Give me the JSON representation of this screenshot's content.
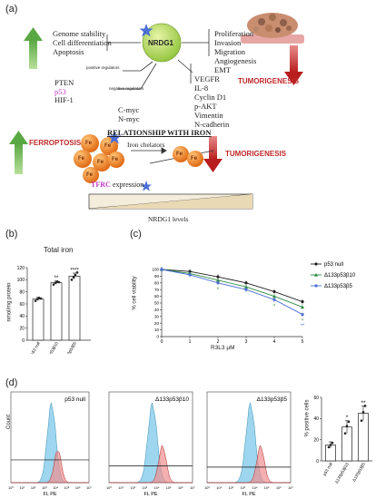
{
  "panel_a": {
    "label": "(a)",
    "center": "NRDG1",
    "left_up": [
      "Genome stability",
      "Cell differentiation",
      "Apoptosis"
    ],
    "right_down": [
      "Proliferation",
      "Invasion",
      "Migration",
      "Angiogenesis",
      "EMT"
    ],
    "tumorigenesis": "TUMORIGENESIS",
    "positive_regulators_label": "positive regulators",
    "negative_regulators_label": "negative regulators",
    "pos_regs": [
      "PTEN",
      "p53",
      "HIF-1"
    ],
    "neg_regs": [
      "C-myc",
      "N-myc"
    ],
    "downstream": [
      "VEGFR",
      "IL-8",
      "Cyclin D1",
      "p-AKT",
      "Vimentin",
      "N-cadherin"
    ],
    "relationship": "RELATIONSHIP WITH IRON",
    "ferroptosis": "FERROPTOSIS",
    "iron_chelators": "Iron chelators",
    "tumorigenesis2": "TUMORIGENESIS",
    "tfrc_word": "TFRC",
    "expression_word": "expression",
    "nrdg1_levels": "NRDG1 levels",
    "fe": "Fe"
  },
  "panel_b": {
    "label": "(b)",
    "title": "Total iron",
    "ylabel": "nmol/mg protein",
    "yticks": [
      "0",
      "20",
      "40",
      "60",
      "80",
      "100",
      "120"
    ],
    "categories": [
      "p53 null",
      "Δ133p53β10",
      "Δ133p53β5"
    ],
    "sig": [
      "",
      "**",
      "****"
    ]
  },
  "panel_c": {
    "label": "(c)",
    "xlabel": "R3L3 μM",
    "ylabel": "% cell viability",
    "yticks": [
      "0",
      "10",
      "20",
      "30",
      "40",
      "50",
      "60",
      "70",
      "80",
      "90",
      "100"
    ],
    "xticks": [
      "0",
      "1",
      "2",
      "3",
      "4",
      "5"
    ],
    "legend": [
      "p53 null",
      "Δ133p53β10",
      "Δ133p53β5"
    ]
  },
  "panel_d": {
    "label": "(d)",
    "ylabel": "Count",
    "xlabel": "FL PE",
    "titles": [
      "p53 null",
      "Δ133p53β10",
      "Δ133p53β5"
    ],
    "xticks": [
      "10⁰",
      "10¹",
      "10²",
      "10³",
      "10⁴",
      "10⁵",
      "10⁶",
      "10⁷"
    ],
    "bar_ylabel": "% positive cells",
    "bar_yticks": [
      "0",
      "20",
      "40",
      "60"
    ],
    "bar_categories": [
      "p53 null",
      "Δ133p53β10",
      "Δ133p53β5"
    ],
    "bar_sig": [
      "",
      "*",
      "**"
    ]
  },
  "colors": {
    "green": "#7dbf5e",
    "red": "#c0282a",
    "magenta": "#c23cc8",
    "orange": "#e8792a",
    "blue": "#4b6fd6"
  },
  "chart_data": [
    {
      "type": "bar",
      "title": "Total iron",
      "ylabel": "nmol/mg protein",
      "categories": [
        "p53 null",
        "Δ133p53β10",
        "Δ133p53β5"
      ],
      "values": [
        68,
        95,
        106
      ],
      "errors": [
        3,
        3,
        5
      ],
      "points": [
        [
          65,
          68,
          70,
          69
        ],
        [
          92,
          95,
          97,
          96
        ],
        [
          100,
          104,
          108,
          112
        ]
      ],
      "ylim": [
        0,
        120
      ]
    },
    {
      "type": "line",
      "xlabel": "R3L3 μM",
      "ylabel": "% cell viability",
      "x": [
        0,
        1,
        2,
        3,
        4,
        5
      ],
      "ylim": [
        0,
        100
      ],
      "legend_position": "right",
      "series": [
        {
          "name": "p53 null",
          "values": [
            100,
            97,
            89,
            80,
            67,
            52
          ]
        },
        {
          "name": "Δ133p53β10",
          "values": [
            100,
            94,
            84,
            74,
            60,
            44
          ]
        },
        {
          "name": "Δ133p53β5",
          "values": [
            100,
            92,
            80,
            70,
            55,
            33
          ]
        }
      ]
    },
    {
      "type": "bar",
      "ylabel": "% positive cells",
      "categories": [
        "p53 null",
        "Δ133p53β10",
        "Δ133p53β5"
      ],
      "values": [
        15,
        32,
        45
      ],
      "errors": [
        3,
        6,
        7
      ],
      "points": [
        [
          13,
          15,
          17
        ],
        [
          26,
          33,
          37
        ],
        [
          38,
          46,
          52
        ]
      ],
      "ylim": [
        0,
        60
      ]
    }
  ]
}
